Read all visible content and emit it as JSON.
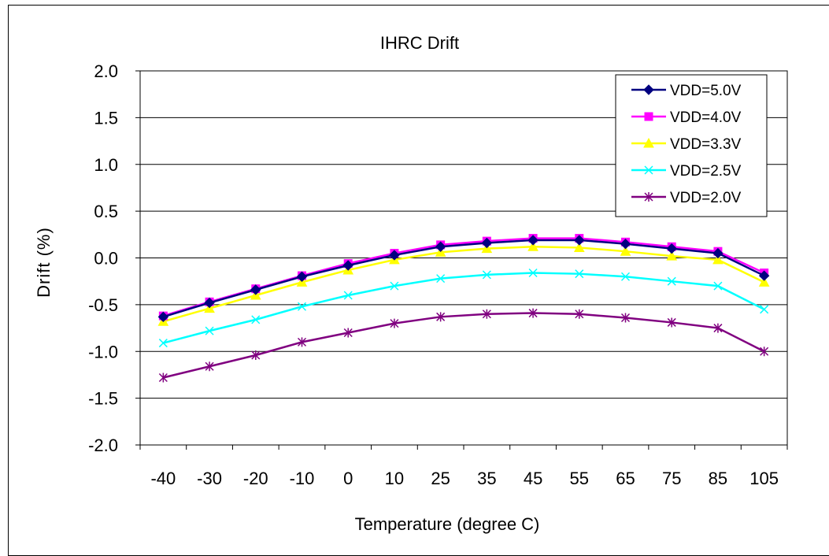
{
  "chart_data": {
    "type": "line",
    "title": "IHRC Drift",
    "xlabel": "Temperature (degree C)",
    "ylabel": "Drift (%)",
    "categories": [
      "-40",
      "-30",
      "-20",
      "-10",
      "0",
      "10",
      "25",
      "35",
      "45",
      "55",
      "65",
      "75",
      "85",
      "105"
    ],
    "ylim": [
      -2.0,
      2.0
    ],
    "yticks": [
      "2.0",
      "1.5",
      "1.0",
      "0.5",
      "0.0",
      "-0.5",
      "-1.0",
      "-1.5",
      "-2.0"
    ],
    "ytick_values": [
      2.0,
      1.5,
      1.0,
      0.5,
      0.0,
      -0.5,
      -1.0,
      -1.5,
      -2.0
    ],
    "grid": "horizontal",
    "legend_position": "top-right",
    "series": [
      {
        "name": "VDD=5.0V",
        "color": "#000080",
        "marker": "diamond",
        "values": [
          -0.63,
          -0.48,
          -0.34,
          -0.2,
          -0.08,
          0.03,
          0.12,
          0.16,
          0.19,
          0.19,
          0.15,
          0.1,
          0.05,
          -0.19
        ]
      },
      {
        "name": "VDD=4.0V",
        "color": "#FF00FF",
        "marker": "square",
        "values": [
          -0.62,
          -0.47,
          -0.33,
          -0.19,
          -0.06,
          0.05,
          0.14,
          0.18,
          0.21,
          0.21,
          0.17,
          0.12,
          0.07,
          -0.16
        ]
      },
      {
        "name": "VDD=3.3V",
        "color": "#FFFF00",
        "marker": "triangle",
        "values": [
          -0.68,
          -0.54,
          -0.4,
          -0.26,
          -0.13,
          -0.02,
          0.06,
          0.1,
          0.12,
          0.11,
          0.07,
          0.02,
          -0.02,
          -0.26
        ]
      },
      {
        "name": "VDD=2.5V",
        "color": "#00FFFF",
        "marker": "x",
        "values": [
          -0.91,
          -0.78,
          -0.66,
          -0.52,
          -0.4,
          -0.3,
          -0.22,
          -0.18,
          -0.16,
          -0.17,
          -0.2,
          -0.25,
          -0.3,
          -0.55
        ]
      },
      {
        "name": "VDD=2.0V",
        "color": "#800080",
        "marker": "star",
        "values": [
          -1.28,
          -1.16,
          -1.04,
          -0.9,
          -0.8,
          -0.7,
          -0.63,
          -0.6,
          -0.59,
          -0.6,
          -0.64,
          -0.69,
          -0.75,
          -1.0
        ]
      }
    ]
  }
}
